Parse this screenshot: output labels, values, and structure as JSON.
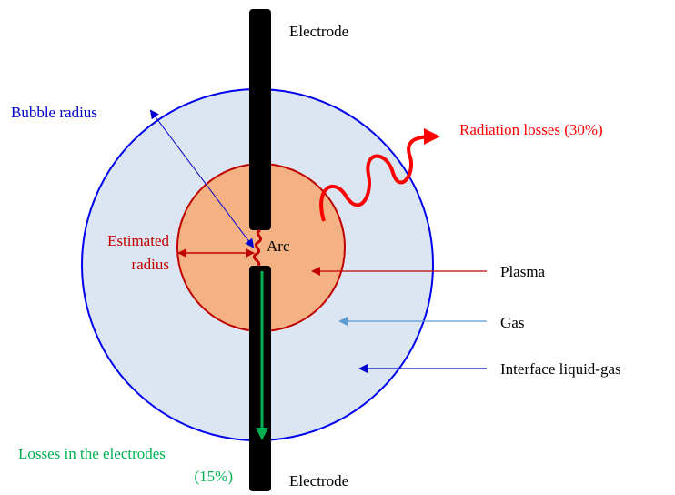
{
  "labels": {
    "electrode_top": "Electrode",
    "electrode_bottom": "Electrode",
    "bubble_radius": "Bubble radius",
    "radiation_losses": "Radiation losses (30%)",
    "estimated_radius": [
      "Estimated",
      "radius"
    ],
    "arc": "Arc",
    "plasma": "Plasma",
    "gas": "Gas",
    "interface": "Interface liquid-gas",
    "electrode_losses": [
      "Losses in the electrodes",
      "(15%)"
    ]
  }
}
